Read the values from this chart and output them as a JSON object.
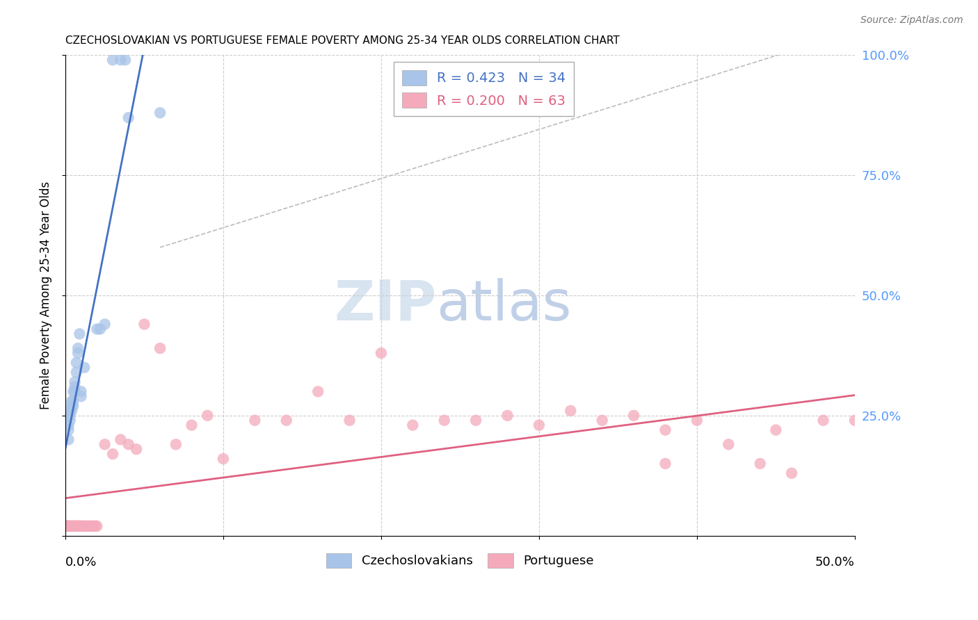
{
  "title": "CZECHOSLOVAKIAN VS PORTUGUESE FEMALE POVERTY AMONG 25-34 YEAR OLDS CORRELATION CHART",
  "source": "Source: ZipAtlas.com",
  "ylabel": "Female Poverty Among 25-34 Year Olds",
  "legend_czech_R": "0.423",
  "legend_czech_N": "34",
  "legend_port_R": "0.200",
  "legend_port_N": "63",
  "czech_color": "#A8C4E8",
  "port_color": "#F4AABB",
  "czech_line_color": "#4472C4",
  "port_line_color": "#E06080",
  "diagonal_color": "#BBBBBB",
  "background_color": "#FFFFFF",
  "ytick_color": "#5599FF",
  "xlim": [
    0.0,
    0.5
  ],
  "ylim": [
    0.0,
    1.0
  ],
  "czech_points_x": [
    0.0,
    0.001,
    0.001,
    0.002,
    0.002,
    0.002,
    0.003,
    0.003,
    0.003,
    0.004,
    0.004,
    0.004,
    0.005,
    0.005,
    0.005,
    0.006,
    0.006,
    0.006,
    0.007,
    0.007,
    0.008,
    0.008,
    0.009,
    0.01,
    0.01,
    0.012,
    0.02,
    0.022,
    0.025,
    0.03,
    0.035,
    0.038,
    0.04,
    0.06
  ],
  "czech_points_y": [
    0.02,
    0.02,
    0.02,
    0.2,
    0.22,
    0.23,
    0.24,
    0.25,
    0.26,
    0.26,
    0.27,
    0.28,
    0.27,
    0.28,
    0.3,
    0.3,
    0.31,
    0.32,
    0.34,
    0.36,
    0.38,
    0.39,
    0.42,
    0.29,
    0.3,
    0.35,
    0.43,
    0.43,
    0.44,
    0.99,
    0.99,
    0.99,
    0.87,
    0.88
  ],
  "port_points_x": [
    0.0,
    0.001,
    0.001,
    0.002,
    0.002,
    0.003,
    0.003,
    0.004,
    0.004,
    0.005,
    0.005,
    0.006,
    0.006,
    0.007,
    0.007,
    0.008,
    0.008,
    0.009,
    0.01,
    0.01,
    0.011,
    0.012,
    0.013,
    0.014,
    0.015,
    0.016,
    0.017,
    0.018,
    0.019,
    0.02,
    0.025,
    0.03,
    0.035,
    0.04,
    0.045,
    0.05,
    0.06,
    0.07,
    0.08,
    0.09,
    0.1,
    0.12,
    0.14,
    0.16,
    0.18,
    0.2,
    0.22,
    0.24,
    0.26,
    0.28,
    0.3,
    0.32,
    0.34,
    0.36,
    0.38,
    0.4,
    0.42,
    0.44,
    0.46,
    0.48,
    0.5,
    0.38,
    0.45
  ],
  "port_points_y": [
    0.02,
    0.02,
    0.02,
    0.02,
    0.02,
    0.02,
    0.02,
    0.02,
    0.02,
    0.02,
    0.02,
    0.02,
    0.02,
    0.02,
    0.02,
    0.02,
    0.02,
    0.02,
    0.02,
    0.02,
    0.02,
    0.02,
    0.02,
    0.02,
    0.02,
    0.02,
    0.02,
    0.02,
    0.02,
    0.02,
    0.19,
    0.17,
    0.2,
    0.19,
    0.18,
    0.44,
    0.39,
    0.19,
    0.23,
    0.25,
    0.16,
    0.24,
    0.24,
    0.3,
    0.24,
    0.38,
    0.23,
    0.24,
    0.24,
    0.25,
    0.23,
    0.26,
    0.24,
    0.25,
    0.15,
    0.24,
    0.19,
    0.15,
    0.13,
    0.24,
    0.24,
    0.22,
    0.22
  ]
}
